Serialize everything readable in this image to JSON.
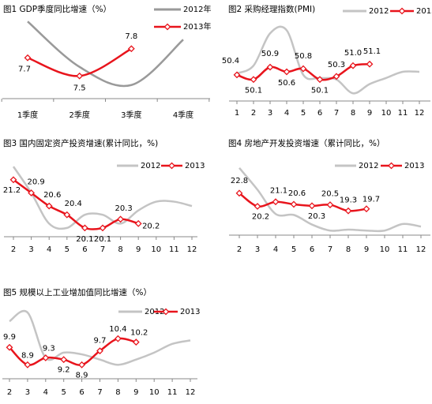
{
  "chart_data": [
    {
      "type": "line",
      "title": "图1 GDP季度同比增速（%）",
      "categories": [
        "1季度",
        "2季度",
        "3季度",
        "4季度"
      ],
      "ylim": [
        7.25,
        8.25
      ],
      "series": [
        {
          "name": "2012年",
          "color": "#9a9a9a",
          "values": [
            8.1,
            7.6,
            7.4,
            7.9
          ]
        },
        {
          "name": "2013年",
          "color": "#e8141c",
          "values": [
            7.7,
            7.5,
            7.8,
            null
          ],
          "value_labels": [
            "7.7",
            "7.5",
            "7.8",
            null
          ]
        }
      ]
    },
    {
      "type": "line",
      "title": "图2 采购经理指数(PMI)",
      "categories": [
        1,
        2,
        3,
        4,
        5,
        6,
        7,
        8,
        9,
        10,
        11,
        12
      ],
      "ylim": [
        48.7,
        54.5
      ],
      "series": [
        {
          "name": "2012",
          "color": "#c4c4c4",
          "values": [
            50.5,
            51.0,
            53.1,
            53.3,
            50.4,
            50.2,
            50.1,
            49.2,
            49.8,
            50.2,
            50.6,
            50.6
          ]
        },
        {
          "name": "2013",
          "color": "#e8141c",
          "values": [
            50.4,
            50.1,
            50.9,
            50.6,
            50.8,
            50.1,
            50.3,
            51.0,
            51.1,
            null,
            null,
            null
          ],
          "value_labels": [
            "50.4",
            "50.1",
            "50.9",
            "50.6",
            "50.8",
            "50.1",
            "50.3",
            "51.0",
            "51.1",
            null,
            null,
            null
          ]
        }
      ]
    },
    {
      "type": "line",
      "title": "图3 国内固定资产投资增速(累计同比，%)",
      "categories": [
        2,
        3,
        4,
        5,
        6,
        7,
        8,
        9,
        10,
        11,
        12
      ],
      "ylim": [
        19.9,
        21.7
      ],
      "series": [
        {
          "name": "2012",
          "color": "#c4c4c4",
          "values": [
            21.5,
            20.9,
            20.2,
            20.1,
            20.4,
            20.4,
            20.2,
            20.5,
            20.7,
            20.7,
            20.6
          ]
        },
        {
          "name": "2013",
          "color": "#e8141c",
          "values": [
            21.2,
            20.9,
            20.6,
            20.4,
            20.1,
            20.1,
            20.3,
            20.2,
            null,
            null,
            null
          ],
          "value_labels": [
            "21.2",
            "20.9",
            "20.6",
            "20.4",
            "20.1",
            "20.1",
            "20.3",
            "20.2",
            null,
            null,
            null
          ]
        }
      ]
    },
    {
      "type": "line",
      "title": "图4 房地产开发投资增速（累计同比，%）",
      "categories": [
        2,
        3,
        4,
        5,
        6,
        7,
        8,
        9,
        10,
        11,
        12
      ],
      "ylim": [
        14.5,
        29.8
      ],
      "series": [
        {
          "name": "2012",
          "color": "#c4c4c4",
          "values": [
            27.8,
            23.5,
            18.7,
            18.5,
            16.6,
            15.4,
            15.6,
            15.4,
            15.4,
            16.7,
            16.2
          ]
        },
        {
          "name": "2013",
          "color": "#e8141c",
          "values": [
            22.8,
            20.2,
            21.1,
            20.6,
            20.3,
            20.5,
            19.3,
            19.7,
            null,
            null,
            null
          ],
          "value_labels": [
            "22.8",
            "20.2",
            "21.1",
            "20.6",
            "20.3",
            "20.5",
            "19.3",
            "19.7",
            null,
            null,
            null
          ]
        }
      ]
    },
    {
      "type": "line",
      "title": "图5 规模以上工业增加值同比增速（%）",
      "categories": [
        2,
        3,
        4,
        5,
        6,
        7,
        8,
        9,
        10,
        11,
        12
      ],
      "ylim": [
        8.1,
        12.4
      ],
      "series": [
        {
          "name": "2012",
          "color": "#c4c4c4",
          "values": [
            11.4,
            11.9,
            9.3,
            9.6,
            9.5,
            9.2,
            8.9,
            9.2,
            9.6,
            10.1,
            10.3
          ]
        },
        {
          "name": "2013",
          "color": "#e8141c",
          "values": [
            9.9,
            8.9,
            9.3,
            9.2,
            8.9,
            9.7,
            10.4,
            10.2,
            null,
            null,
            null
          ],
          "value_labels": [
            "9.9",
            "8.9",
            "9.3",
            "9.2",
            "8.9",
            "9.7",
            "10.4",
            "10.2",
            null,
            null,
            null
          ]
        }
      ]
    }
  ]
}
